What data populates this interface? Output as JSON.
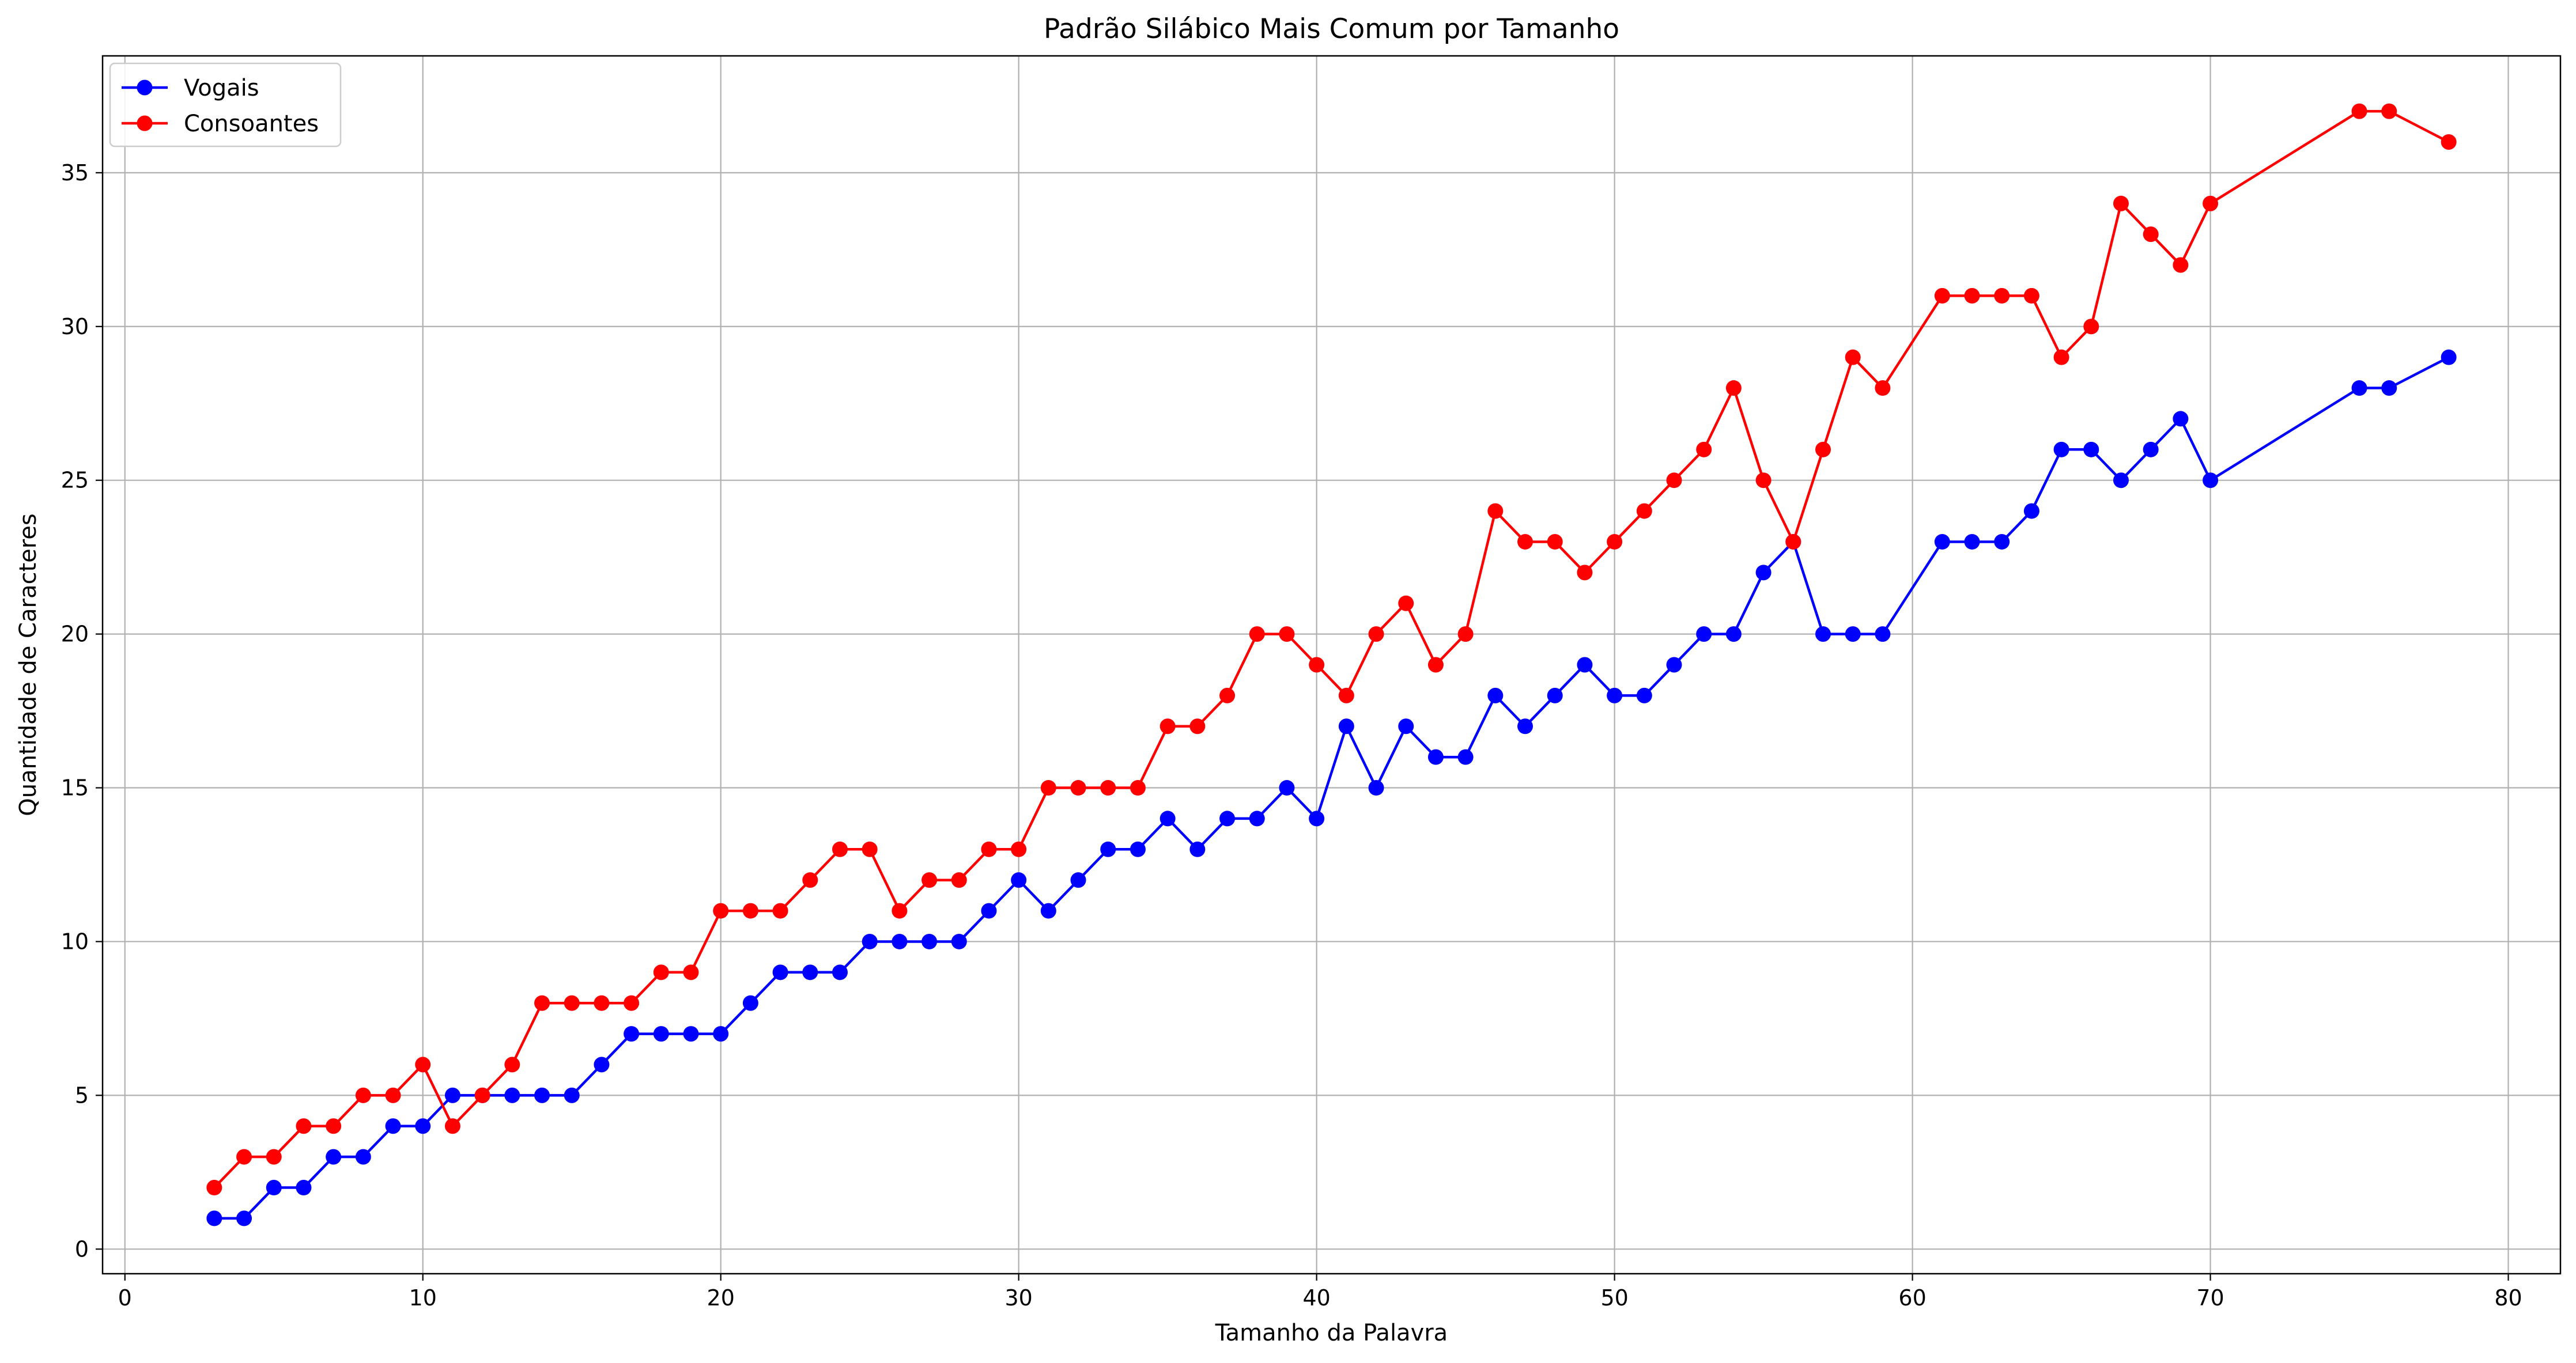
{
  "chart_data": {
    "type": "line",
    "title": "Padrão Silábico Mais Comum por Tamanho",
    "xlabel": "Tamanho da Palavra",
    "ylabel": "Quantidade de Caracteres",
    "xlim": [
      -0.75,
      81.75
    ],
    "ylim": [
      -0.8,
      38.8
    ],
    "xticks": [
      0,
      10,
      20,
      30,
      40,
      50,
      60,
      70,
      80
    ],
    "yticks": [
      0,
      5,
      10,
      15,
      20,
      25,
      30,
      35
    ],
    "grid": true,
    "legend_position": "top-left",
    "x": [
      3,
      4,
      5,
      6,
      7,
      8,
      9,
      10,
      11,
      12,
      13,
      14,
      15,
      16,
      17,
      18,
      19,
      20,
      21,
      22,
      23,
      24,
      25,
      26,
      27,
      28,
      29,
      30,
      31,
      32,
      33,
      34,
      35,
      36,
      37,
      38,
      39,
      40,
      41,
      42,
      43,
      44,
      45,
      46,
      47,
      48,
      49,
      50,
      51,
      52,
      53,
      54,
      55,
      56,
      57,
      58,
      59,
      61,
      62,
      63,
      64,
      65,
      66,
      67,
      68,
      69,
      70,
      75,
      76,
      78
    ],
    "series": [
      {
        "name": "Vogais",
        "color": "#0000ff",
        "values": [
          1,
          1,
          2,
          2,
          3,
          3,
          4,
          4,
          5,
          5,
          5,
          5,
          5,
          6,
          7,
          7,
          7,
          7,
          8,
          9,
          9,
          9,
          10,
          10,
          10,
          10,
          11,
          12,
          11,
          12,
          13,
          13,
          14,
          13,
          14,
          14,
          15,
          14,
          17,
          15,
          17,
          16,
          16,
          18,
          17,
          18,
          19,
          18,
          18,
          19,
          20,
          20,
          22,
          23,
          20,
          20,
          20,
          23,
          23,
          23,
          24,
          26,
          26,
          25,
          26,
          27,
          25,
          28,
          28,
          29
        ]
      },
      {
        "name": "Consoantes",
        "color": "#ff0000",
        "values": [
          2,
          3,
          3,
          4,
          4,
          5,
          5,
          6,
          4,
          5,
          6,
          8,
          8,
          8,
          8,
          9,
          9,
          11,
          11,
          11,
          12,
          13,
          13,
          11,
          12,
          12,
          13,
          13,
          15,
          15,
          15,
          15,
          17,
          17,
          18,
          20,
          20,
          19,
          18,
          20,
          21,
          19,
          20,
          24,
          23,
          23,
          22,
          23,
          24,
          25,
          26,
          28,
          25,
          23,
          26,
          29,
          28,
          31,
          31,
          31,
          31,
          29,
          30,
          34,
          33,
          32,
          34,
          37,
          37,
          36
        ]
      }
    ]
  }
}
